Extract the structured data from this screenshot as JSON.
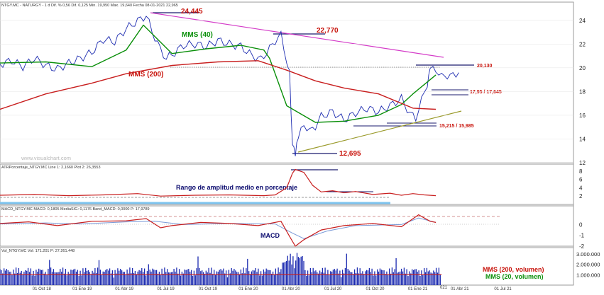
{
  "chart_data": [
    {
      "panel": "price",
      "type": "line",
      "header": "NTGY.MC - NATURGY - 1 d Dif. % 0,56 Dif. 0,125 Min. 19,950 Max. 19,640 Fecha 08-01-2021 22,965",
      "watermark": "www.visualchart.com",
      "ylim": [
        12,
        25
      ],
      "yticks": [
        "24",
        "22",
        "20",
        "18",
        "16",
        "14",
        "12"
      ],
      "xticks": [
        "01 Oct 18",
        "01 Ene 19",
        "01 Abr 19",
        "01 Jul 19",
        "01 Oct 19",
        "01 Ene 20",
        "01 Abr 20",
        "01 Jul 20",
        "01 Oct 20",
        "01 Ene 21",
        "01 Abr 21",
        "01 Jul 21"
      ],
      "colors": {
        "price": "#1c2bb0",
        "mms40": "#0a8f0a",
        "mms200": "#c81e1e",
        "resistance": "#d43cc8",
        "support": "#9a9a2a",
        "level": "#1a1a6e"
      },
      "series": [
        {
          "name": "MMS (40)",
          "key": "mms40",
          "x": [
            0,
            0.08,
            0.16,
            0.22,
            0.25,
            0.3,
            0.36,
            0.42,
            0.46,
            0.47,
            0.5,
            0.55,
            0.6,
            0.66,
            0.7,
            0.72,
            0.76
          ],
          "values": [
            20.4,
            20.5,
            20.1,
            21.5,
            23.6,
            21.2,
            21.6,
            21.9,
            21.5,
            20.8,
            16.8,
            15.4,
            15.5,
            16.0,
            16.9,
            17.8,
            19.4
          ]
        },
        {
          "name": "MMS (200)",
          "key": "mms200",
          "x": [
            0,
            0.08,
            0.16,
            0.22,
            0.3,
            0.38,
            0.45,
            0.5,
            0.55,
            0.6,
            0.66,
            0.72,
            0.76
          ],
          "values": [
            16.5,
            17.8,
            18.7,
            19.5,
            20.2,
            20.5,
            20.6,
            19.8,
            18.9,
            18.3,
            17.8,
            16.6,
            16.5
          ]
        }
      ],
      "price_series": [
        [
          0,
          20.3
        ],
        [
          0.02,
          20.6
        ],
        [
          0.04,
          20.1
        ],
        [
          0.06,
          20.8
        ],
        [
          0.08,
          20.2
        ],
        [
          0.09,
          20.0
        ],
        [
          0.1,
          19.9
        ],
        [
          0.12,
          20.4
        ],
        [
          0.14,
          20.8
        ],
        [
          0.16,
          21.3
        ],
        [
          0.18,
          22.4
        ],
        [
          0.2,
          22.2
        ],
        [
          0.22,
          23.3
        ],
        [
          0.235,
          23.8
        ],
        [
          0.255,
          24.4
        ],
        [
          0.265,
          23.1
        ],
        [
          0.28,
          21.5
        ],
        [
          0.29,
          20.8
        ],
        [
          0.3,
          21.1
        ],
        [
          0.32,
          21.9
        ],
        [
          0.34,
          22.0
        ],
        [
          0.36,
          21.8
        ],
        [
          0.38,
          22.3
        ],
        [
          0.4,
          22.0
        ],
        [
          0.42,
          21.8
        ],
        [
          0.44,
          21.0
        ],
        [
          0.455,
          20.7
        ],
        [
          0.47,
          21.6
        ],
        [
          0.48,
          22.3
        ],
        [
          0.49,
          22.75
        ],
        [
          0.5,
          20.6
        ],
        [
          0.505,
          19.5
        ],
        [
          0.51,
          13.4
        ],
        [
          0.515,
          12.9
        ],
        [
          0.52,
          14.0
        ],
        [
          0.53,
          15.3
        ],
        [
          0.54,
          14.6
        ],
        [
          0.55,
          15.1
        ],
        [
          0.56,
          15.9
        ],
        [
          0.58,
          16.3
        ],
        [
          0.6,
          15.6
        ],
        [
          0.62,
          16.2
        ],
        [
          0.64,
          16.6
        ],
        [
          0.66,
          16.3
        ],
        [
          0.68,
          16.8
        ],
        [
          0.7,
          17.4
        ],
        [
          0.715,
          16.1
        ],
        [
          0.725,
          15.8
        ],
        [
          0.735,
          17.2
        ],
        [
          0.745,
          18.7
        ],
        [
          0.75,
          19.8
        ],
        [
          0.76,
          19.9
        ],
        [
          0.77,
          19.2
        ],
        [
          0.78,
          19.4
        ],
        [
          0.79,
          19.3
        ],
        [
          0.8,
          19.6
        ]
      ],
      "labels": {
        "l24445": "24,445",
        "l22770": "22,770",
        "l20130": "20,130",
        "l17": "17,95 / 17,645",
        "l15": "15,215 / 15,985",
        "l12695": "12,695",
        "mms40": "MMS (40)",
        "mms200": "MMS (200)"
      }
    },
    {
      "panel": "atr",
      "type": "line",
      "header": "ATRPorcentaje_NTGY.MC Line 1: 2,1660 Plot 2: 26,3553",
      "annotation": "Rango de amplitud medio en porcentaje",
      "ylim": [
        0,
        9
      ],
      "yticks": [
        "8",
        "6",
        "4",
        "2"
      ],
      "values": [
        [
          0,
          2.2
        ],
        [
          0.06,
          2.4
        ],
        [
          0.12,
          2.1
        ],
        [
          0.18,
          2.3
        ],
        [
          0.24,
          2.6
        ],
        [
          0.28,
          2.0
        ],
        [
          0.34,
          2.2
        ],
        [
          0.4,
          2.3
        ],
        [
          0.46,
          2.1
        ],
        [
          0.48,
          2.3
        ],
        [
          0.5,
          4.0
        ],
        [
          0.51,
          7.5
        ],
        [
          0.515,
          8.4
        ],
        [
          0.53,
          7.7
        ],
        [
          0.545,
          4.6
        ],
        [
          0.56,
          3.0
        ],
        [
          0.58,
          3.3
        ],
        [
          0.6,
          2.8
        ],
        [
          0.62,
          3.1
        ],
        [
          0.65,
          2.4
        ],
        [
          0.68,
          2.7
        ],
        [
          0.7,
          2.2
        ],
        [
          0.72,
          2.6
        ],
        [
          0.74,
          2.3
        ],
        [
          0.76,
          2.1
        ]
      ]
    },
    {
      "panel": "macd",
      "type": "line",
      "header": "MACD_NTGY.MC MACD: 0,1805 MediaSIG: 0,1176 Band_MACD: 0,0000 P: 17,9789",
      "annotation": "MACD",
      "ylim": [
        -2,
        1.4
      ],
      "yticks": [
        "0",
        "-1",
        "-2"
      ],
      "values": [
        [
          0,
          0.1
        ],
        [
          0.05,
          0.25
        ],
        [
          0.1,
          -0.1
        ],
        [
          0.16,
          0.3
        ],
        [
          0.22,
          0.35
        ],
        [
          0.255,
          0.55
        ],
        [
          0.28,
          -0.3
        ],
        [
          0.3,
          -0.1
        ],
        [
          0.35,
          0.2
        ],
        [
          0.4,
          0.1
        ],
        [
          0.45,
          -0.1
        ],
        [
          0.49,
          0.3
        ],
        [
          0.505,
          -1.1
        ],
        [
          0.515,
          -2.0
        ],
        [
          0.53,
          -1.4
        ],
        [
          0.56,
          -0.5
        ],
        [
          0.6,
          -0.1
        ],
        [
          0.65,
          0.1
        ],
        [
          0.7,
          -0.2
        ],
        [
          0.73,
          0.9
        ],
        [
          0.75,
          0.3
        ],
        [
          0.76,
          0.2
        ]
      ],
      "signal": [
        [
          0,
          0.05
        ],
        [
          0.08,
          0.15
        ],
        [
          0.14,
          0.05
        ],
        [
          0.22,
          0.25
        ],
        [
          0.27,
          0.3
        ],
        [
          0.32,
          0.0
        ],
        [
          0.4,
          0.1
        ],
        [
          0.48,
          0.05
        ],
        [
          0.51,
          -0.8
        ],
        [
          0.53,
          -1.3
        ],
        [
          0.57,
          -0.6
        ],
        [
          0.62,
          -0.1
        ],
        [
          0.7,
          0.0
        ],
        [
          0.73,
          0.6
        ],
        [
          0.76,
          0.2
        ]
      ]
    },
    {
      "panel": "volume",
      "type": "bar",
      "header": "Vol_NTGY.MC Vol: 171.201 P: 27.261.448",
      "ylim": [
        0,
        3200000
      ],
      "yticks": [
        "3.000.000",
        "2.000.000",
        "1.000.000"
      ],
      "legend": [
        "MMS (200, volumen)",
        "MMS (20, volumen)"
      ]
    }
  ],
  "xaxis_partial": "021"
}
